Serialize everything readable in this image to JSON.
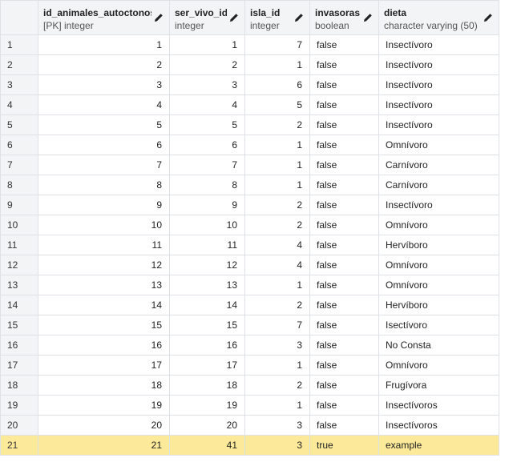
{
  "columns": [
    {
      "name": "",
      "type": ""
    },
    {
      "name": "id_animales_autoctonos",
      "type": "[PK] integer"
    },
    {
      "name": "ser_vivo_id",
      "type": "integer"
    },
    {
      "name": "isla_id",
      "type": "integer"
    },
    {
      "name": "invasoras",
      "type": "boolean"
    },
    {
      "name": "dieta",
      "type": "character varying (50)"
    }
  ],
  "rows": [
    [
      "1",
      "1",
      "1",
      "7",
      "false",
      "Insectívoro"
    ],
    [
      "2",
      "2",
      "2",
      "1",
      "false",
      "Insectívoro"
    ],
    [
      "3",
      "3",
      "3",
      "6",
      "false",
      "Insectívoro"
    ],
    [
      "4",
      "4",
      "4",
      "5",
      "false",
      "Insectívoro"
    ],
    [
      "5",
      "5",
      "5",
      "2",
      "false",
      "Insectívoro"
    ],
    [
      "6",
      "6",
      "6",
      "1",
      "false",
      "Omnívoro"
    ],
    [
      "7",
      "7",
      "7",
      "1",
      "false",
      "Carnívoro"
    ],
    [
      "8",
      "8",
      "8",
      "1",
      "false",
      "Carnívoro"
    ],
    [
      "9",
      "9",
      "9",
      "2",
      "false",
      "Insectívoro"
    ],
    [
      "10",
      "10",
      "10",
      "2",
      "false",
      "Omnívoro"
    ],
    [
      "11",
      "11",
      "11",
      "4",
      "false",
      "Hervíboro"
    ],
    [
      "12",
      "12",
      "12",
      "4",
      "false",
      "Omnívoro"
    ],
    [
      "13",
      "13",
      "13",
      "1",
      "false",
      "Omnívoro"
    ],
    [
      "14",
      "14",
      "14",
      "2",
      "false",
      "Hervíboro"
    ],
    [
      "15",
      "15",
      "15",
      "7",
      "false",
      "Isectívoro"
    ],
    [
      "16",
      "16",
      "16",
      "3",
      "false",
      "No Consta"
    ],
    [
      "17",
      "17",
      "17",
      "1",
      "false",
      "Omnívoro"
    ],
    [
      "18",
      "18",
      "18",
      "2",
      "false",
      "Frugívora"
    ],
    [
      "19",
      "19",
      "19",
      "1",
      "false",
      "Insectívoros"
    ],
    [
      "20",
      "20",
      "20",
      "3",
      "false",
      "Insectívoros"
    ],
    [
      "21",
      "21",
      "41",
      "3",
      "true",
      "example"
    ]
  ],
  "selected_row_index": 20,
  "highlight_color": "#fcea9a",
  "header_icon": "pencil-edit-icon"
}
